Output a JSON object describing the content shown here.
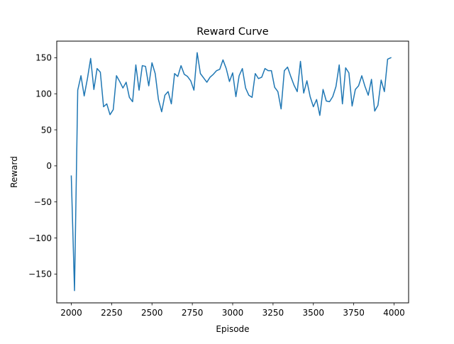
{
  "chart_data": {
    "type": "line",
    "title": "Reward Curve",
    "xlabel": "Episode",
    "ylabel": "Reward",
    "xlim": [
      1910,
      4090
    ],
    "ylim": [
      -190,
      173
    ],
    "xticks": [
      2000,
      2250,
      2500,
      2750,
      3000,
      3250,
      3500,
      3750,
      4000
    ],
    "yticks": [
      -150,
      -100,
      -50,
      0,
      50,
      100,
      150
    ],
    "grid": false,
    "legend": "none",
    "series": [
      {
        "color": "#1f77b4",
        "x": [
          2000,
          2020,
          2040,
          2060,
          2080,
          2100,
          2120,
          2140,
          2160,
          2180,
          2200,
          2220,
          2240,
          2260,
          2280,
          2300,
          2320,
          2340,
          2360,
          2380,
          2400,
          2420,
          2440,
          2460,
          2480,
          2500,
          2520,
          2540,
          2560,
          2580,
          2600,
          2620,
          2640,
          2660,
          2680,
          2700,
          2720,
          2740,
          2760,
          2780,
          2800,
          2820,
          2840,
          2860,
          2880,
          2900,
          2920,
          2940,
          2960,
          2980,
          3000,
          3020,
          3040,
          3060,
          3080,
          3100,
          3120,
          3140,
          3160,
          3180,
          3200,
          3220,
          3240,
          3260,
          3280,
          3300,
          3320,
          3340,
          3360,
          3380,
          3400,
          3420,
          3440,
          3460,
          3480,
          3500,
          3520,
          3540,
          3560,
          3580,
          3600,
          3620,
          3640,
          3660,
          3680,
          3700,
          3720,
          3740,
          3760,
          3780,
          3800,
          3820,
          3840,
          3860,
          3880,
          3900,
          3920,
          3940,
          3960,
          3980
        ],
        "y": [
          -14,
          -173,
          105,
          125,
          97,
          121,
          149,
          106,
          135,
          130,
          82,
          86,
          71,
          78,
          125,
          117,
          108,
          116,
          95,
          89,
          140,
          105,
          139,
          138,
          111,
          143,
          128,
          92,
          75,
          98,
          103,
          86,
          128,
          124,
          139,
          127,
          124,
          118,
          105,
          157,
          128,
          122,
          116,
          123,
          127,
          132,
          134,
          147,
          135,
          117,
          129,
          96,
          125,
          135,
          108,
          98,
          95,
          128,
          121,
          123,
          135,
          132,
          132,
          109,
          103,
          79,
          132,
          137,
          124,
          112,
          103,
          145,
          101,
          118,
          96,
          82,
          92,
          70,
          106,
          90,
          89,
          96,
          110,
          140,
          86,
          136,
          129,
          83,
          106,
          111,
          125,
          110,
          98,
          120,
          76,
          84,
          119,
          103,
          148,
          150
        ]
      }
    ]
  }
}
